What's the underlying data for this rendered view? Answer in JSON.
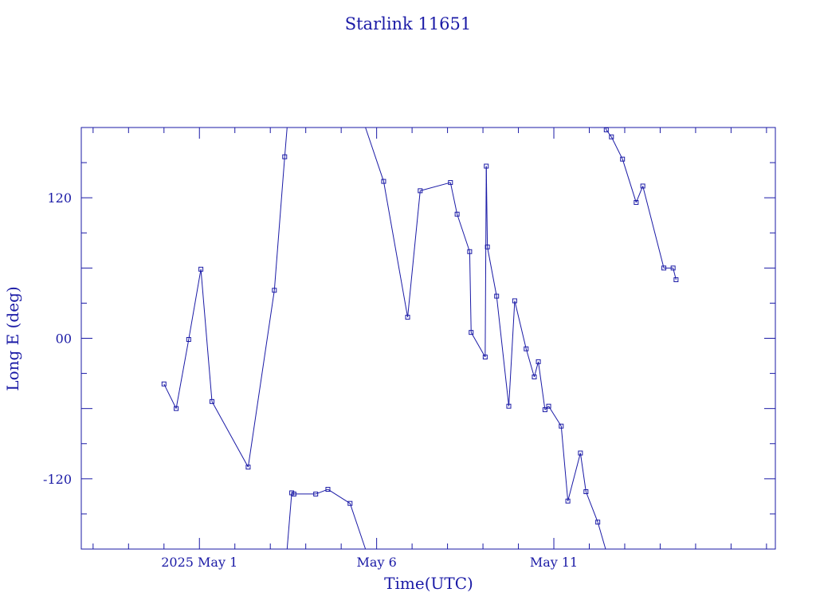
{
  "chart_data": {
    "type": "line",
    "title": "Starlink 11651",
    "xlabel": "Time(UTC)",
    "ylabel": "Long E (deg)",
    "x_unit": "days (UTC)",
    "x_ticks": [
      {
        "day": "2025-05-01",
        "label": "2025 May  1"
      },
      {
        "day": "2025-05-06",
        "label": "May  6"
      },
      {
        "day": "2025-05-11",
        "label": "May 11"
      }
    ],
    "xlim": [
      "2025-04-27T16:00",
      "2025-05-17T06:00"
    ],
    "ylim": [
      -180,
      180
    ],
    "y_ticks": [
      -120,
      0,
      120
    ],
    "y_tick_labels": [
      "-120",
      "00",
      "120"
    ],
    "grid": false,
    "legend": "none",
    "color": "#1a1aa6",
    "wrap_longitude": true,
    "points": [
      [
        "2025-04-30T00:00",
        -39
      ],
      [
        "2025-04-30T08:15",
        -60
      ],
      [
        "2025-04-30T16:45",
        -1
      ],
      [
        "2025-05-01T01:00",
        59
      ],
      [
        "2025-05-01T08:30",
        -54
      ],
      [
        "2025-05-02T09:00",
        -110
      ],
      [
        "2025-05-03T02:45",
        41
      ],
      [
        "2025-05-03T09:45",
        155
      ],
      [
        "2025-05-03T14:30",
        -132
      ],
      [
        "2025-05-03T16:00",
        -133
      ],
      [
        "2025-05-04T06:45",
        -133
      ],
      [
        "2025-05-04T15:00",
        -129
      ],
      [
        "2025-05-05T06:00",
        -141
      ],
      [
        "2025-05-06T04:45",
        134
      ],
      [
        "2025-05-06T21:00",
        18
      ],
      [
        "2025-05-07T05:30",
        126
      ],
      [
        "2025-05-08T02:00",
        133
      ],
      [
        "2025-05-08T06:30",
        106
      ],
      [
        "2025-05-08T15:00",
        74
      ],
      [
        "2025-05-08T16:00",
        5
      ],
      [
        "2025-05-09T01:30",
        -16
      ],
      [
        "2025-05-09T02:15",
        147
      ],
      [
        "2025-05-09T03:00",
        78
      ],
      [
        "2025-05-09T09:15",
        36
      ],
      [
        "2025-05-09T17:30",
        -58
      ],
      [
        "2025-05-09T21:30",
        32
      ],
      [
        "2025-05-10T05:15",
        -9
      ],
      [
        "2025-05-10T10:45",
        -33
      ],
      [
        "2025-05-10T13:30",
        -20
      ],
      [
        "2025-05-10T18:00",
        -61
      ],
      [
        "2025-05-10T20:30",
        -58
      ],
      [
        "2025-05-11T05:00",
        -75
      ],
      [
        "2025-05-11T09:30",
        -139
      ],
      [
        "2025-05-11T18:00",
        -98
      ],
      [
        "2025-05-11T21:45",
        -131
      ],
      [
        "2025-05-12T05:45",
        -157
      ],
      [
        "2025-05-12T11:30",
        178
      ],
      [
        "2025-05-12T15:00",
        172
      ],
      [
        "2025-05-12T22:30",
        153
      ],
      [
        "2025-05-13T07:45",
        116
      ],
      [
        "2025-05-13T12:15",
        130
      ],
      [
        "2025-05-14T02:30",
        60
      ],
      [
        "2025-05-14T08:45",
        60
      ],
      [
        "2025-05-14T10:45",
        50
      ]
    ]
  }
}
